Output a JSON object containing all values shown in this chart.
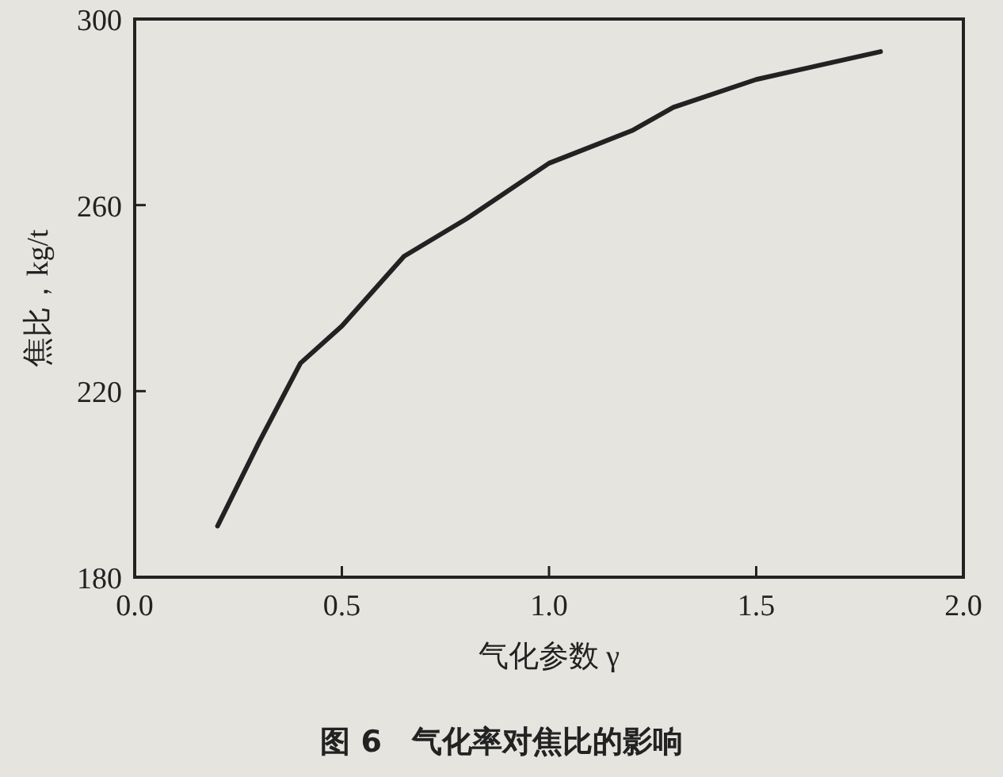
{
  "chart_data": {
    "type": "line",
    "title": "图 6　气化率对焦比的影响",
    "xlabel": "气化参数 γ",
    "ylabel": "焦比，kg/t",
    "x": [
      0.2,
      0.3,
      0.4,
      0.5,
      0.65,
      0.8,
      1.0,
      1.2,
      1.3,
      1.5,
      1.65,
      1.8
    ],
    "series": [
      {
        "color": "#222222",
        "values": [
          191,
          209,
          226,
          234,
          249,
          257,
          269,
          276,
          281,
          287,
          290,
          293
        ]
      }
    ],
    "xlim": [
      0,
      2
    ],
    "ylim": [
      180,
      300
    ],
    "xticks": [
      {
        "value": 0,
        "label": "0.0"
      },
      {
        "value": 0.5,
        "label": "0.5"
      },
      {
        "value": 1,
        "label": "1.0"
      },
      {
        "value": 1.5,
        "label": "1.5"
      },
      {
        "value": 2,
        "label": "2.0"
      }
    ],
    "yticks": [
      180,
      220,
      260,
      300
    ]
  }
}
